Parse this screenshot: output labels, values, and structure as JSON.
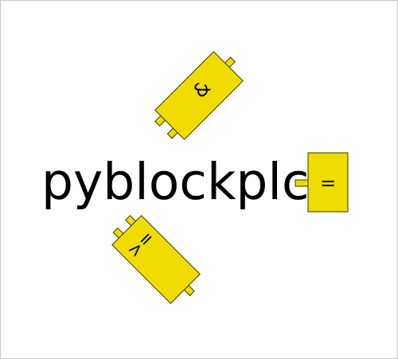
{
  "logo": {
    "title": "pyblockplc",
    "colors": {
      "block_fill": "#f0dc00",
      "block_stroke": "#3a3500",
      "text": "#000000",
      "frame": "#c8c8c8"
    }
  },
  "blocks": {
    "and_symbol": "&",
    "equal_symbol": "=",
    "ge_symbol": ">="
  }
}
